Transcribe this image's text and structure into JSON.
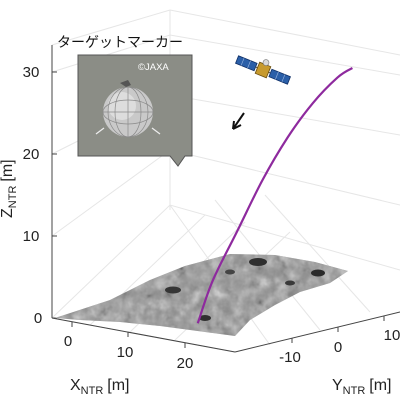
{
  "chart_data": {
    "type": "line",
    "projection": "3d",
    "axes": {
      "x": {
        "label": "X",
        "subscript": "NTR",
        "unit": "[m]",
        "ticks": [
          0,
          10,
          20
        ]
      },
      "y": {
        "label": "Y",
        "subscript": "NTR",
        "unit": "[m]",
        "ticks": [
          -10,
          0,
          10
        ]
      },
      "z": {
        "label": "Z",
        "subscript": "NTR",
        "unit": "[m]",
        "ticks": [
          0,
          10,
          20,
          30
        ],
        "zlim": [
          0,
          33
        ]
      }
    },
    "grid": true,
    "series": [
      {
        "color": "#8e2a9e",
        "points": [
          {
            "x": 14,
            "y": -4,
            "z": 0
          },
          {
            "x": 15,
            "y": -2,
            "z": 5
          },
          {
            "x": 17,
            "y": 1,
            "z": 11
          },
          {
            "x": 19,
            "y": 4,
            "z": 17
          },
          {
            "x": 21,
            "y": 7,
            "z": 22
          },
          {
            "x": 23,
            "y": 10,
            "z": 26
          },
          {
            "x": 25,
            "y": 13,
            "z": 29
          },
          {
            "x": 26,
            "y": 15,
            "z": 30
          }
        ]
      }
    ],
    "annotations": [
      {
        "type": "arrow",
        "direction": "descending"
      },
      {
        "type": "callout",
        "title": "ターゲットマーカー",
        "image_credit": "©JAXA",
        "image_subject": "target-marker-ball"
      },
      {
        "type": "icon",
        "name": "spacecraft-icon"
      }
    ],
    "colors": {
      "trajectory": "#8e2a9e",
      "terrain": "#8a8a8a",
      "grid": "#e4e4e4",
      "callout_bg": "#8b8d86"
    }
  }
}
